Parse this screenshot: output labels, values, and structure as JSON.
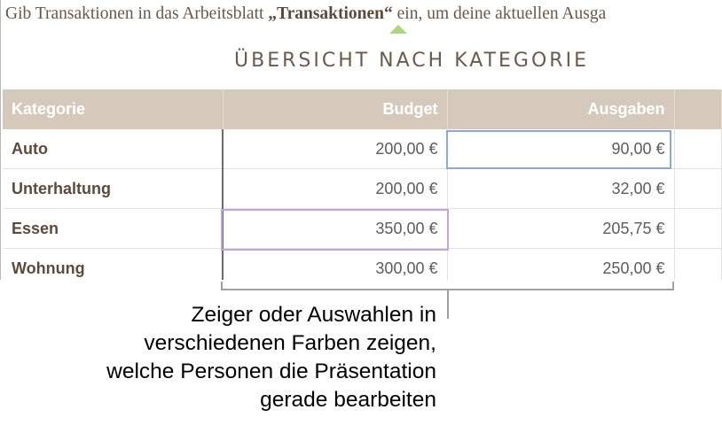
{
  "intro": {
    "before": "Gib Transaktionen in das Arbeitsblatt ",
    "strong": "„Transaktionen“",
    "after": " ein, um deine aktuellen Ausga"
  },
  "title": "ÜBERSICHT NACH KATEGORIE",
  "table": {
    "headers": [
      "Kategorie",
      "Budget",
      "Ausgaben",
      ""
    ],
    "rows": [
      {
        "category": "Auto",
        "budget": "200,00 €",
        "spending": "90,00 €"
      },
      {
        "category": "Unterhaltung",
        "budget": "200,00 €",
        "spending": "32,00 €"
      },
      {
        "category": "Essen",
        "budget": "350,00 €",
        "spending": "205,75 €"
      },
      {
        "category": "Wohnung",
        "budget": "300,00 €",
        "spending": "250,00 €"
      }
    ]
  },
  "colors": {
    "header_bg": "#d5c9bc",
    "selection_blue": "#8aa9d6",
    "selection_purple": "#c5a5dc",
    "caret_green": "#a9d97c"
  },
  "caption": [
    "Zeiger oder Auswahlen in",
    "verschiedenen Farben zeigen,",
    "welche Personen die Präsentation",
    "gerade bearbeiten"
  ]
}
